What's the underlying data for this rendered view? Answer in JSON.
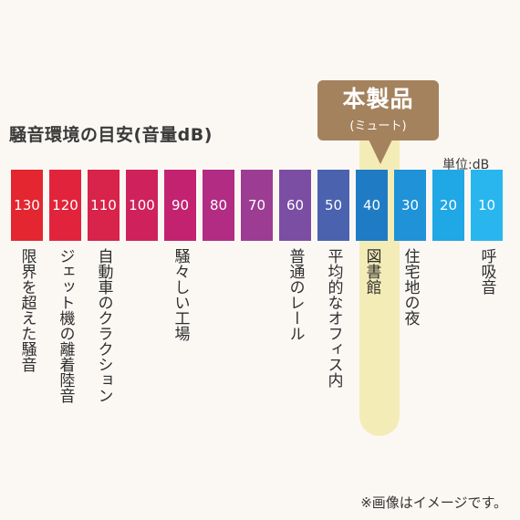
{
  "title": "騒音環境の目安(音量dB)",
  "unit": "単位:dB",
  "callout": {
    "main": "本製品",
    "sub": "(ミュート)"
  },
  "scale": {
    "levels": [
      {
        "value": "130",
        "label": "限界を超えた騒音",
        "color": "#e3262f"
      },
      {
        "value": "120",
        "label": "ジェット機の離着陸音",
        "color": "#e1243c"
      },
      {
        "value": "110",
        "label": "自動車のクラクション",
        "color": "#d8234a"
      },
      {
        "value": "100",
        "label": "",
        "color": "#cf225c"
      },
      {
        "value": "90",
        "label": "騒々しい工場",
        "color": "#c32271"
      },
      {
        "value": "80",
        "label": "",
        "color": "#b22c83"
      },
      {
        "value": "70",
        "label": "",
        "color": "#9c3d93"
      },
      {
        "value": "60",
        "label": "普通のレール",
        "color": "#7c4ea3"
      },
      {
        "value": "50",
        "label": "平均的なオフィス内",
        "color": "#4b62ae"
      },
      {
        "value": "40",
        "label": "図書館",
        "color": "#1f7cc4"
      },
      {
        "value": "30",
        "label": "住宅地の夜",
        "color": "#1f92d8"
      },
      {
        "value": "20",
        "label": "",
        "color": "#20a7e6"
      },
      {
        "value": "10",
        "label": "呼吸音",
        "color": "#29b6ef"
      }
    ]
  },
  "note": "※画像はイメージです。"
}
